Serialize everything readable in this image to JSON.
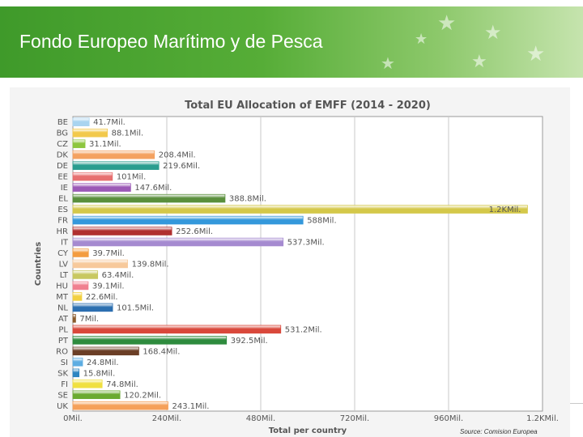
{
  "slide": {
    "title": "Fondo Europeo Marítimo y de Pesca",
    "source": "Source: Comision Europea",
    "colors": {
      "banner_green": "#4fa533",
      "banner_light": "#c6e4ae"
    }
  },
  "chart_data": {
    "type": "bar",
    "orientation": "horizontal",
    "title": "Total EU Allocation of EMFF (2014 - 2020)",
    "xlabel": "Total per country",
    "ylabel": "Countries",
    "xlim": [
      0,
      1200
    ],
    "x_ticks": [
      "0Mil.",
      "240Mil.",
      "480Mil.",
      "720Mil.",
      "960Mil.",
      "1.2KMil."
    ],
    "grid": true,
    "legend": "none",
    "categories": [
      "BE",
      "BG",
      "CZ",
      "DK",
      "DE",
      "EE",
      "IE",
      "EL",
      "ES",
      "FR",
      "HR",
      "IT",
      "CY",
      "LV",
      "LT",
      "HU",
      "MT",
      "NL",
      "AT",
      "PL",
      "PT",
      "RO",
      "SI",
      "SK",
      "FI",
      "SE",
      "UK"
    ],
    "values": [
      41.7,
      88.1,
      31.1,
      208.4,
      219.6,
      101,
      147.6,
      388.8,
      1161.6,
      588,
      252.6,
      537.3,
      39.7,
      139.8,
      63.4,
      39.1,
      22.6,
      101.5,
      7,
      531.2,
      392.5,
      168.4,
      24.8,
      15.8,
      74.8,
      120.2,
      243.1
    ],
    "labels": [
      "41.7Mil.",
      "88.1Mil.",
      "31.1Mil.",
      "208.4Mil.",
      "219.6Mil.",
      "101Mil.",
      "147.6Mil.",
      "388.8Mil.",
      "1.2KMil.",
      "588Mil.",
      "252.6Mil.",
      "537.3Mil.",
      "39.7Mil.",
      "139.8Mil.",
      "63.4Mil.",
      "39.1Mil.",
      "22.6Mil.",
      "101.5Mil.",
      "7Mil.",
      "531.2Mil.",
      "392.5Mil.",
      "168.4Mil.",
      "24.8Mil.",
      "15.8Mil.",
      "74.8Mil.",
      "120.2Mil.",
      "243.1Mil."
    ],
    "colors": [
      "#a9d4f0",
      "#f2c94c",
      "#8dc63f",
      "#f4a261",
      "#2a9d8f",
      "#e76f6f",
      "#9b59b6",
      "#5a8f3c",
      "#d4c84a",
      "#3498db",
      "#b03030",
      "#a58ad0",
      "#f39c40",
      "#f7c99b",
      "#c8c860",
      "#f08090",
      "#f2d040",
      "#2c6fb0",
      "#8a5a2b",
      "#d9483b",
      "#2e8b3e",
      "#6b3e26",
      "#5dade2",
      "#2e86c1",
      "#f0e040",
      "#6aaa30",
      "#f5a05a"
    ]
  }
}
